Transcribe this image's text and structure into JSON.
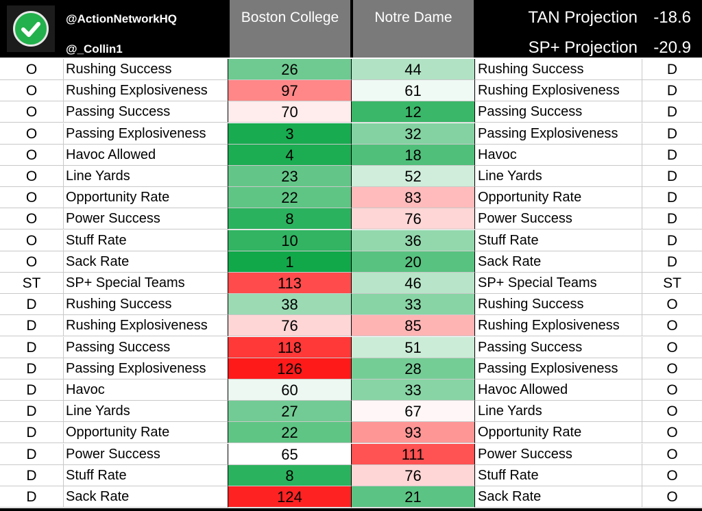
{
  "header": {
    "handle_primary": "@ActionNetworkHQ",
    "handle_secondary": "@_Collin1",
    "team1": "Boston College",
    "team2": "Notre Dame",
    "projections": [
      {
        "label": "TAN Projection",
        "value": "-18.6"
      },
      {
        "label": "SP+ Projection",
        "value": "-20.9"
      }
    ]
  },
  "colors": {
    "best_green": "#11a84a",
    "midpoint_white": "#ffffff",
    "worst_red": "#ff1a1a"
  },
  "rows": [
    {
      "left_side": "O",
      "left_label": "Rushing Success",
      "bc": "26",
      "nd": "44",
      "right_label": "Rushing Success",
      "right_side": "D"
    },
    {
      "left_side": "O",
      "left_label": "Rushing Explosiveness",
      "bc": "97",
      "nd": "61",
      "right_label": "Rushing Explosiveness",
      "right_side": "D"
    },
    {
      "left_side": "O",
      "left_label": "Passing Success",
      "bc": "70",
      "nd": "12",
      "right_label": "Passing Success",
      "right_side": "D"
    },
    {
      "left_side": "O",
      "left_label": "Passing Explosiveness",
      "bc": "3",
      "nd": "32",
      "right_label": "Passing Explosiveness",
      "right_side": "D"
    },
    {
      "left_side": "O",
      "left_label": "Havoc Allowed",
      "bc": "4",
      "nd": "18",
      "right_label": "Havoc",
      "right_side": "D"
    },
    {
      "left_side": "O",
      "left_label": "Line Yards",
      "bc": "23",
      "nd": "52",
      "right_label": "Line Yards",
      "right_side": "D"
    },
    {
      "left_side": "O",
      "left_label": "Opportunity Rate",
      "bc": "22",
      "nd": "83",
      "right_label": "Opportunity Rate",
      "right_side": "D"
    },
    {
      "left_side": "O",
      "left_label": "Power Success",
      "bc": "8",
      "nd": "76",
      "right_label": "Power Success",
      "right_side": "D"
    },
    {
      "left_side": "O",
      "left_label": "Stuff Rate",
      "bc": "10",
      "nd": "36",
      "right_label": "Stuff Rate",
      "right_side": "D"
    },
    {
      "left_side": "O",
      "left_label": "Sack Rate",
      "bc": "1",
      "nd": "20",
      "right_label": "Sack Rate",
      "right_side": "D"
    },
    {
      "left_side": "ST",
      "left_label": "SP+ Special Teams",
      "bc": "113",
      "nd": "46",
      "right_label": "SP+ Special Teams",
      "right_side": "ST"
    },
    {
      "left_side": "D",
      "left_label": "Rushing Success",
      "bc": "38",
      "nd": "33",
      "right_label": "Rushing Success",
      "right_side": "O"
    },
    {
      "left_side": "D",
      "left_label": "Rushing Explosiveness",
      "bc": "76",
      "nd": "85",
      "right_label": "Rushing Explosiveness",
      "right_side": "O"
    },
    {
      "left_side": "D",
      "left_label": "Passing Success",
      "bc": "118",
      "nd": "51",
      "right_label": "Passing Success",
      "right_side": "O"
    },
    {
      "left_side": "D",
      "left_label": "Passing Explosiveness",
      "bc": "126",
      "nd": "28",
      "right_label": "Passing Explosiveness",
      "right_side": "O"
    },
    {
      "left_side": "D",
      "left_label": "Havoc",
      "bc": "60",
      "nd": "33",
      "right_label": "Havoc Allowed",
      "right_side": "O"
    },
    {
      "left_side": "D",
      "left_label": "Line Yards",
      "bc": "27",
      "nd": "67",
      "right_label": "Line Yards",
      "right_side": "O"
    },
    {
      "left_side": "D",
      "left_label": "Opportunity Rate",
      "bc": "22",
      "nd": "93",
      "right_label": "Opportunity Rate",
      "right_side": "O"
    },
    {
      "left_side": "D",
      "left_label": "Power Success",
      "bc": "65",
      "nd": "111",
      "right_label": "Power Success",
      "right_side": "O"
    },
    {
      "left_side": "D",
      "left_label": "Stuff Rate",
      "bc": "8",
      "nd": "76",
      "right_label": "Stuff Rate",
      "right_side": "O"
    },
    {
      "left_side": "D",
      "left_label": "Sack Rate",
      "bc": "124",
      "nd": "21",
      "right_label": "Sack Rate",
      "right_side": "O"
    }
  ]
}
